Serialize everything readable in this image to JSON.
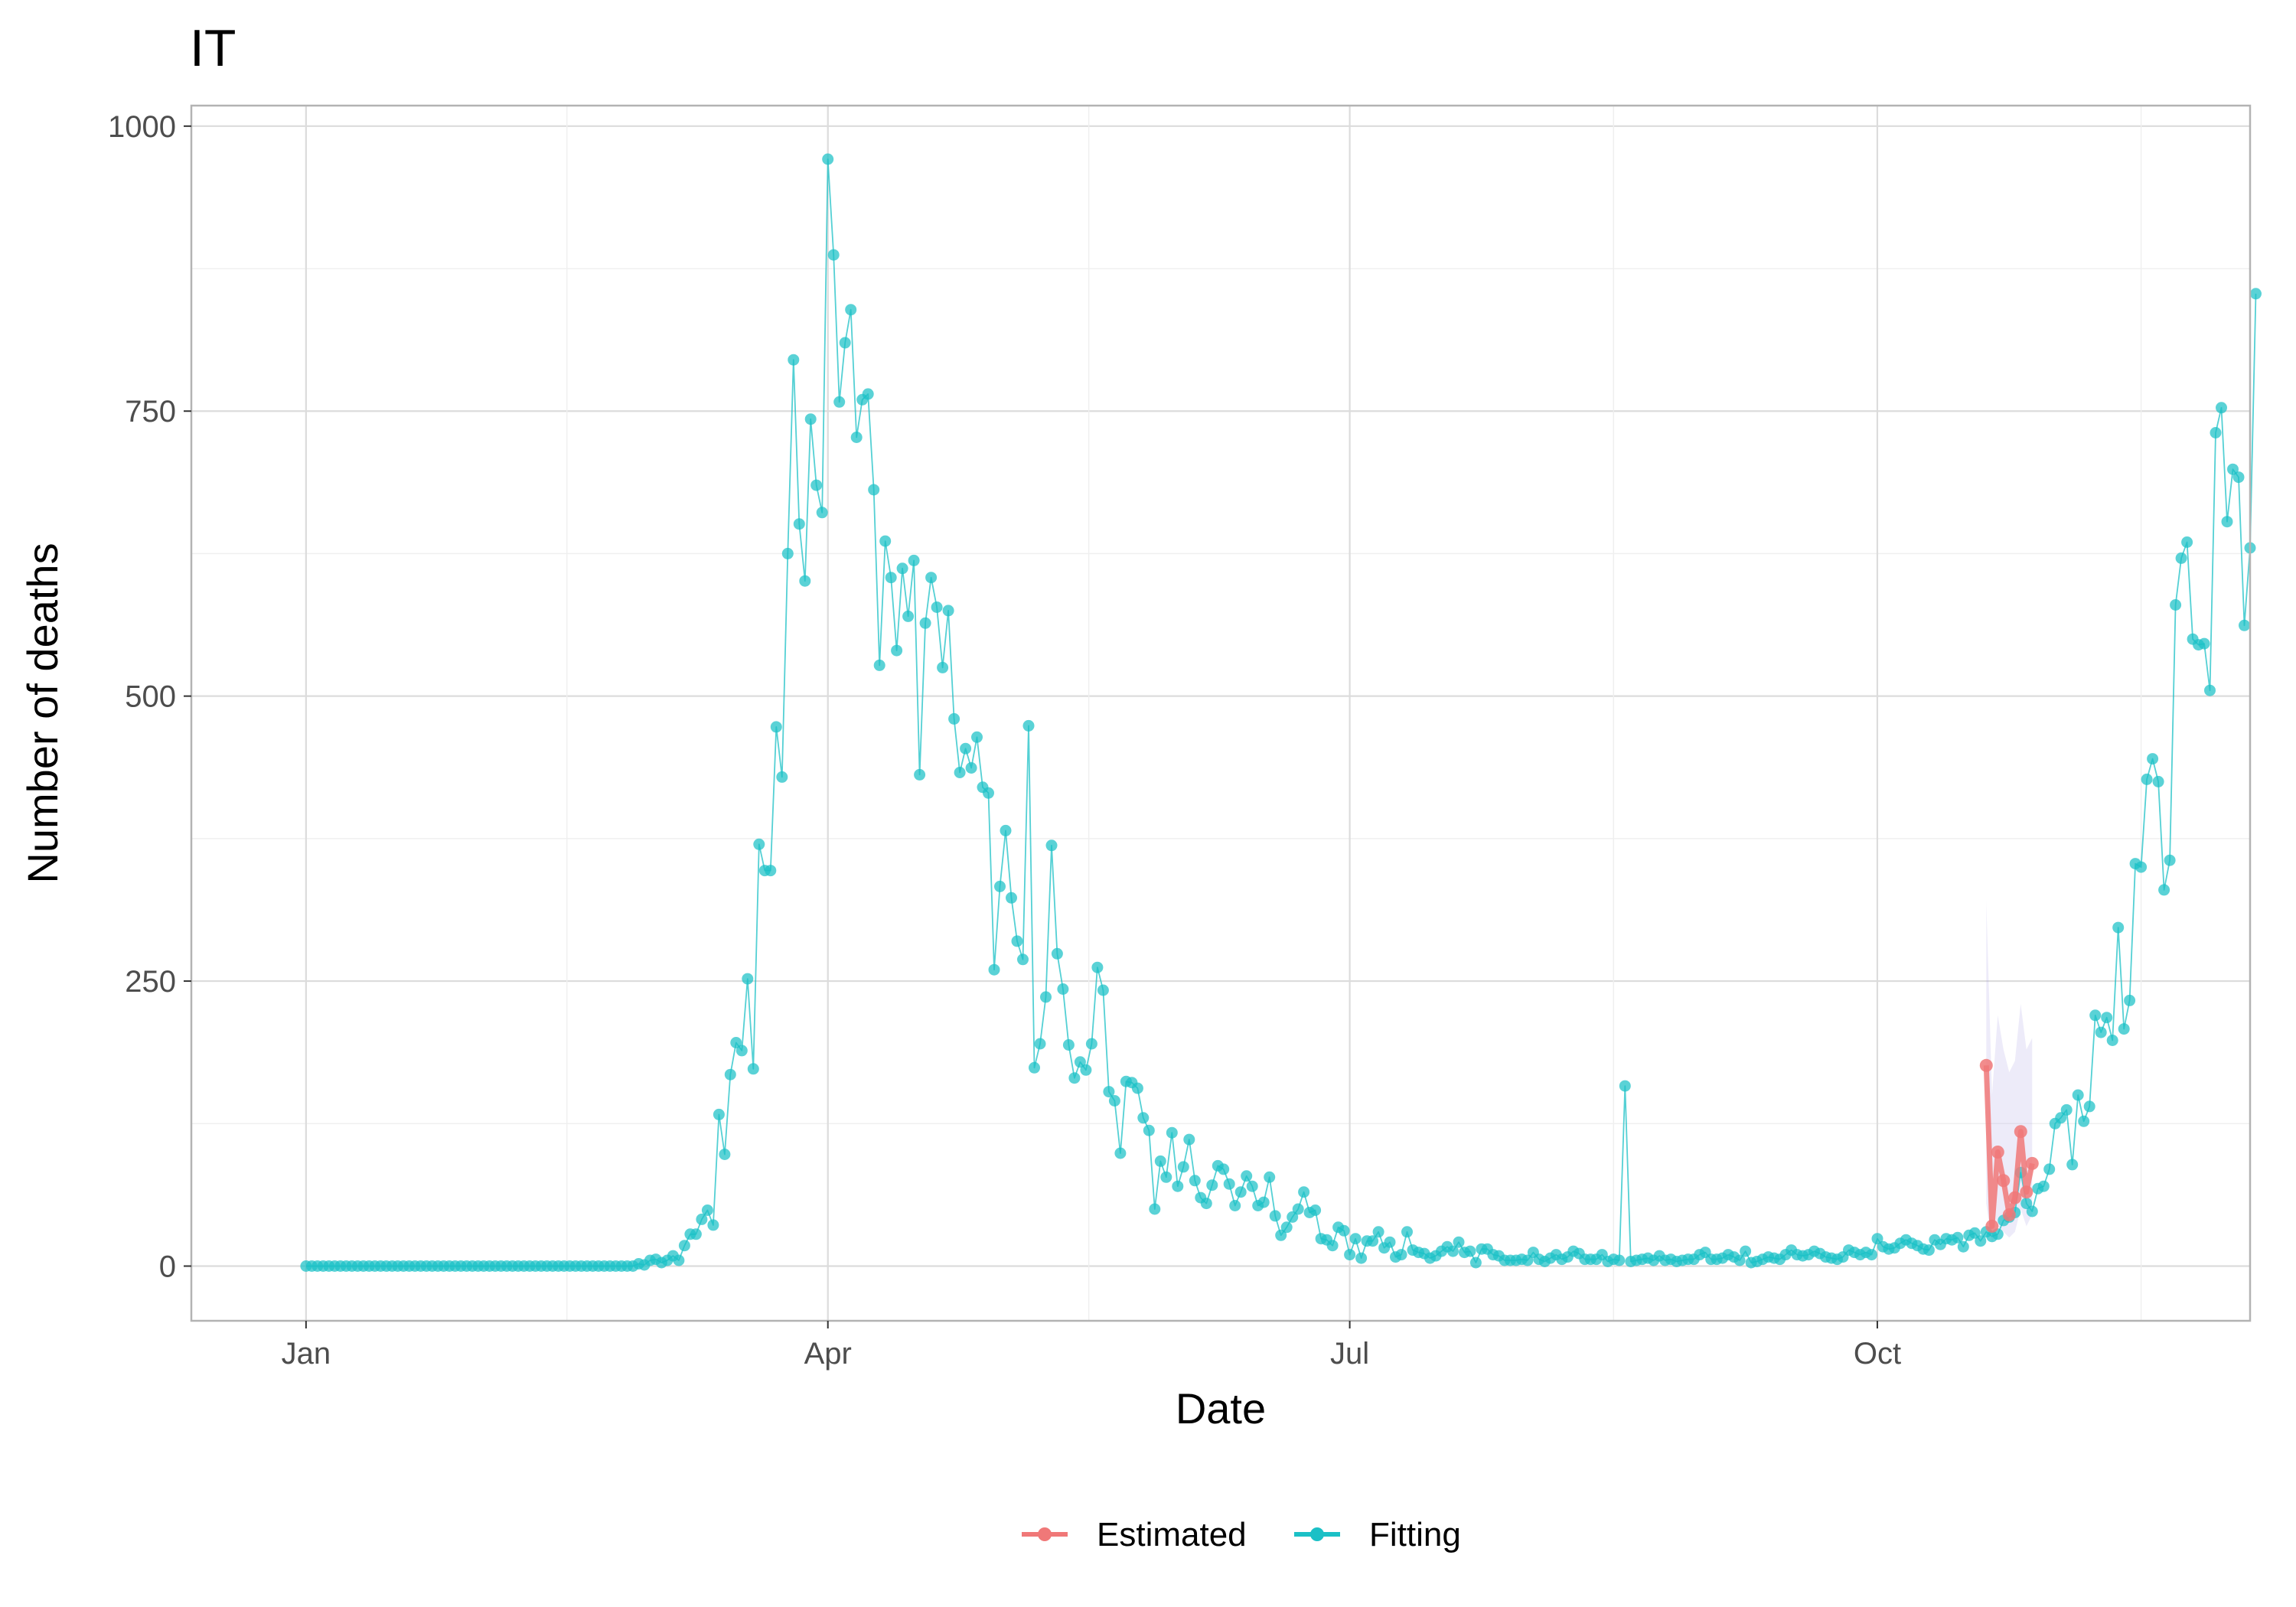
{
  "chart_data": {
    "type": "line",
    "title": "IT",
    "xlabel": "Date",
    "ylabel": "Number of  deaths",
    "x_ticks": [
      {
        "label": "Jan",
        "date": "2020-01-01"
      },
      {
        "label": "Apr",
        "date": "2020-04-01"
      },
      {
        "label": "Jul",
        "date": "2020-07-01"
      },
      {
        "label": "Oct",
        "date": "2020-10-01"
      }
    ],
    "x_range": [
      "2019-12-12",
      "2020-12-05"
    ],
    "y_ticks": [
      0,
      250,
      500,
      750,
      1000
    ],
    "ylim": [
      -48,
      1018
    ],
    "grid": true,
    "legend_position": "bottom",
    "legend": [
      {
        "label": "Estimated",
        "color": "#F07878"
      },
      {
        "label": "Fitting",
        "color": "#1BC0C6"
      }
    ],
    "series": [
      {
        "name": "Fitting",
        "color": "#1BC0C6",
        "start_date": "2020-01-01",
        "step_days": 1,
        "values": [
          0,
          0,
          0,
          0,
          0,
          0,
          0,
          0,
          0,
          0,
          0,
          0,
          0,
          0,
          0,
          0,
          0,
          0,
          0,
          0,
          0,
          0,
          0,
          0,
          0,
          0,
          0,
          0,
          0,
          0,
          0,
          0,
          0,
          0,
          0,
          0,
          0,
          0,
          0,
          0,
          0,
          0,
          0,
          0,
          0,
          0,
          0,
          0,
          0,
          0,
          0,
          0,
          0,
          0,
          0,
          0,
          0,
          0,
          2,
          1,
          5,
          6,
          3,
          5,
          9,
          5,
          18,
          28,
          28,
          41,
          49,
          36,
          133,
          98,
          168,
          196,
          189,
          252,
          173,
          370,
          347,
          347,
          473,
          429,
          625,
          795,
          651,
          601,
          743,
          685,
          661,
          971,
          887,
          758,
          810,
          839,
          727,
          760,
          765,
          681,
          527,
          636,
          604,
          540,
          612,
          570,
          619,
          431,
          564,
          604,
          578,
          525,
          575,
          480,
          433,
          454,
          437,
          464,
          420,
          415,
          260,
          333,
          382,
          323,
          285,
          269,
          474,
          174,
          195,
          236,
          369,
          274,
          243,
          194,
          165,
          179,
          172,
          195,
          262,
          242,
          153,
          145,
          99,
          162,
          161,
          156,
          130,
          119,
          50,
          92,
          78,
          117,
          70,
          87,
          111,
          75,
          60,
          55,
          71,
          88,
          85,
          72,
          53,
          65,
          79,
          70,
          53,
          56,
          78,
          44,
          27,
          34,
          43,
          50,
          65,
          47,
          49,
          24,
          23,
          18,
          34,
          31,
          10,
          24,
          7,
          22,
          22,
          30,
          16,
          21,
          8,
          10,
          30,
          14,
          12,
          11,
          7,
          9,
          13,
          17,
          13,
          21,
          12,
          13,
          3,
          15,
          15,
          10,
          9,
          5,
          5,
          5,
          6,
          5,
          12,
          6,
          4,
          7,
          10,
          6,
          8,
          13,
          11,
          6,
          6,
          6,
          10,
          4,
          6,
          5,
          158,
          4,
          5,
          6,
          7,
          5,
          9,
          5,
          6,
          4,
          5,
          6,
          6,
          10,
          12,
          6,
          6,
          7,
          10,
          8,
          5,
          13,
          3,
          4,
          6,
          8,
          7,
          6,
          10,
          14,
          10,
          9,
          10,
          13,
          11,
          8,
          7,
          6,
          8,
          14,
          12,
          10,
          12,
          10,
          24,
          17,
          15,
          16,
          20,
          23,
          20,
          18,
          15,
          14,
          23,
          19,
          24,
          23,
          25,
          17,
          27,
          29,
          22,
          30,
          26,
          28,
          40,
          43,
          47,
          82,
          55,
          48,
          68,
          70,
          85,
          125,
          130,
          137,
          89,
          150,
          127,
          140,
          220,
          205,
          218,
          198,
          297,
          208,
          233,
          353,
          350,
          427,
          445,
          425,
          330,
          356,
          580,
          621,
          635,
          550,
          545,
          546,
          505,
          731,
          753,
          653,
          699,
          692,
          562,
          630,
          853
        ]
      },
      {
        "name": "Estimated",
        "color": "#F07878",
        "start_date": "2020-10-20",
        "step_days": 1,
        "values": [
          176,
          35,
          100,
          75,
          45,
          60,
          118,
          65,
          90
        ]
      }
    ],
    "estimated_band": {
      "start_date": "2020-10-20",
      "step_days": 1,
      "lower": [
        55,
        20,
        35,
        30,
        25,
        30,
        50,
        35,
        45
      ],
      "upper": [
        320,
        150,
        220,
        190,
        170,
        180,
        230,
        190,
        200
      ]
    }
  }
}
